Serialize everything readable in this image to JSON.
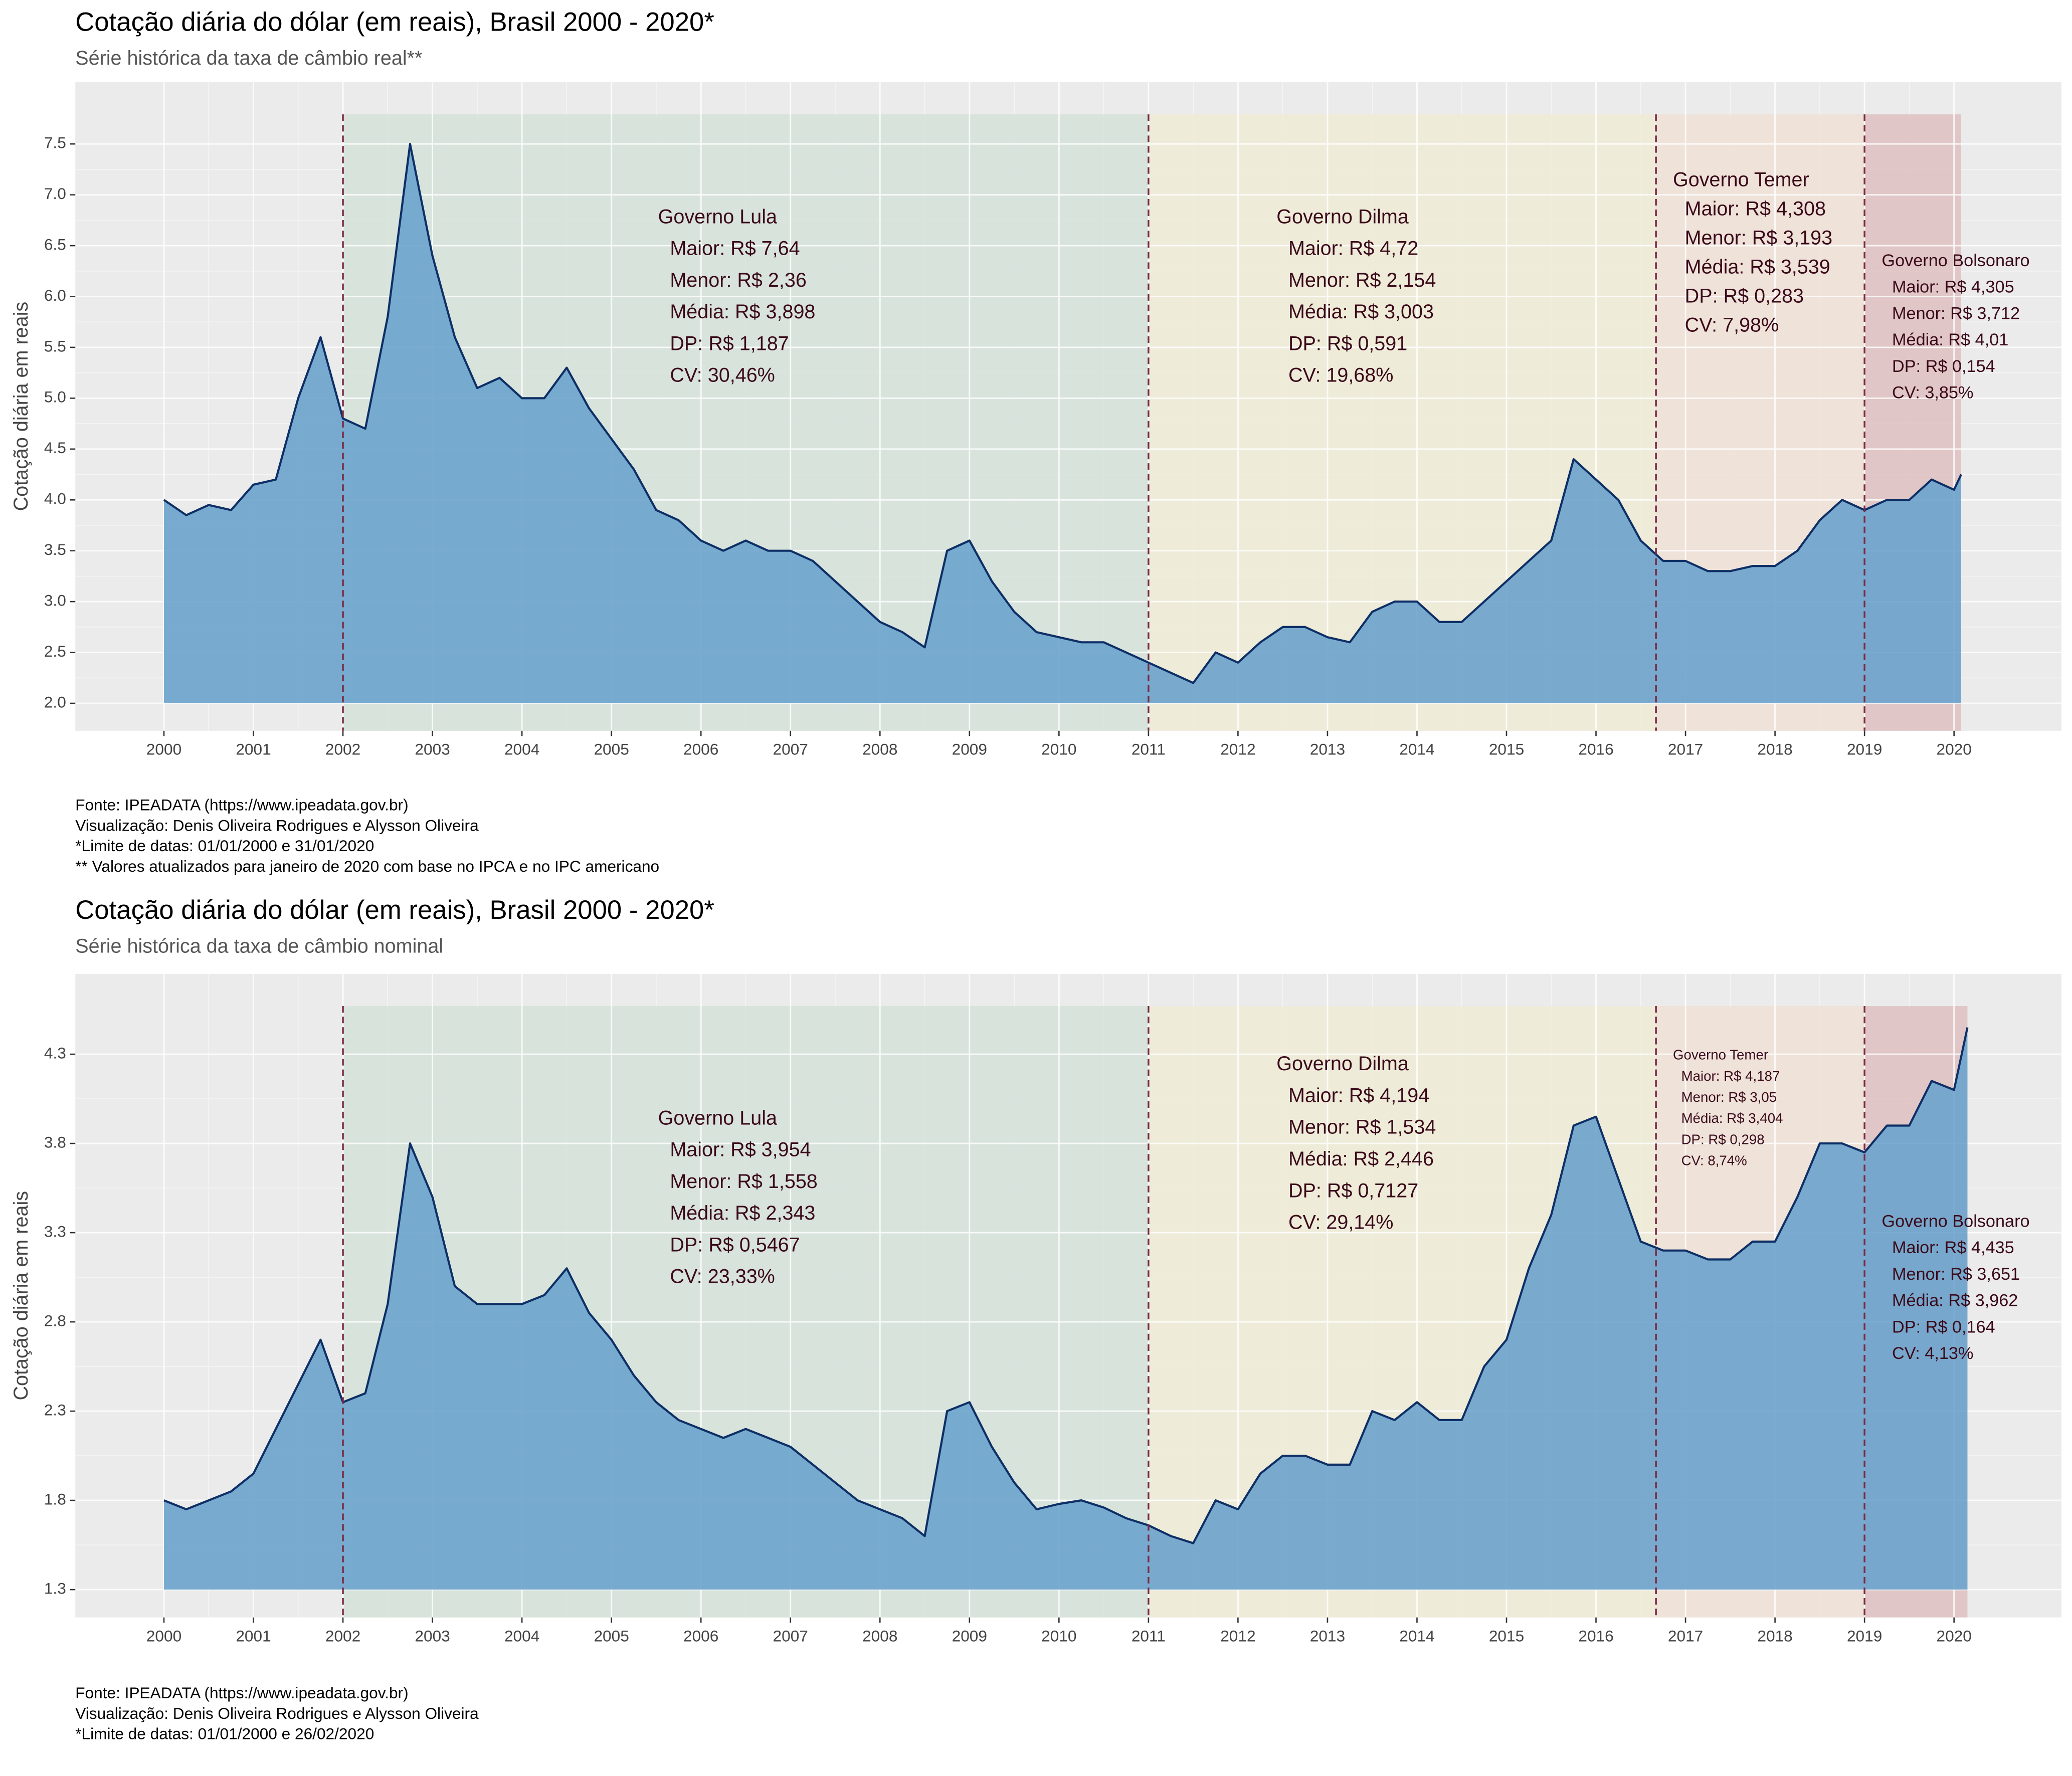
{
  "chart_data": [
    {
      "type": "area",
      "title": "Cotação diária do dólar (em reais), Brasil 2000 - 2020*",
      "subtitle": "Série histórica da taxa de câmbio real**",
      "y_label": "Cotação diária em reais",
      "x": [
        2000,
        2000.25,
        2000.5,
        2000.75,
        2001,
        2001.25,
        2001.5,
        2001.75,
        2002,
        2002.25,
        2002.5,
        2002.75,
        2003,
        2003.25,
        2003.5,
        2003.75,
        2004,
        2004.25,
        2004.5,
        2004.75,
        2005,
        2005.25,
        2005.5,
        2005.75,
        2006,
        2006.25,
        2006.5,
        2006.75,
        2007,
        2007.25,
        2007.5,
        2007.75,
        2008,
        2008.25,
        2008.5,
        2008.75,
        2009,
        2009.25,
        2009.5,
        2009.75,
        2010,
        2010.25,
        2010.5,
        2010.75,
        2011,
        2011.25,
        2011.5,
        2011.75,
        2012,
        2012.25,
        2012.5,
        2012.75,
        2013,
        2013.25,
        2013.5,
        2013.75,
        2014,
        2014.25,
        2014.5,
        2014.75,
        2015,
        2015.25,
        2015.5,
        2015.75,
        2016,
        2016.25,
        2016.5,
        2016.75,
        2017,
        2017.25,
        2017.5,
        2017.75,
        2018,
        2018.25,
        2018.5,
        2018.75,
        2019,
        2019.25,
        2019.5,
        2019.75,
        2020,
        2020.08
      ],
      "values": [
        4.0,
        3.85,
        3.95,
        3.9,
        4.15,
        4.2,
        5.0,
        5.6,
        4.8,
        4.7,
        5.8,
        7.5,
        6.4,
        5.6,
        5.1,
        5.2,
        5.0,
        5.0,
        5.3,
        4.9,
        4.6,
        4.3,
        3.9,
        3.8,
        3.6,
        3.5,
        3.6,
        3.5,
        3.5,
        3.4,
        3.2,
        3.0,
        2.8,
        2.7,
        2.55,
        3.5,
        3.6,
        3.2,
        2.9,
        2.7,
        2.65,
        2.6,
        2.6,
        2.5,
        2.4,
        2.3,
        2.2,
        2.5,
        2.4,
        2.6,
        2.75,
        2.75,
        2.65,
        2.6,
        2.9,
        3.0,
        3.0,
        2.8,
        2.8,
        3.0,
        3.2,
        3.4,
        3.6,
        4.4,
        4.2,
        4.0,
        3.6,
        3.4,
        3.4,
        3.3,
        3.3,
        3.35,
        3.35,
        3.5,
        3.8,
        4.0,
        3.9,
        4.0,
        4.0,
        4.2,
        4.1,
        4.25
      ],
      "fill_color": "#6ba3cc",
      "line_color": "#0e2f66",
      "xlim": [
        1999.01,
        2021.2
      ],
      "ylim": [
        1.73,
        8.11
      ],
      "xticks": [
        2000,
        2001,
        2002,
        2003,
        2004,
        2005,
        2006,
        2007,
        2008,
        2009,
        2010,
        2011,
        2012,
        2013,
        2014,
        2015,
        2016,
        2017,
        2018,
        2019,
        2020
      ],
      "yticks": [
        2.0,
        2.5,
        3.0,
        3.5,
        4.0,
        4.5,
        5.0,
        5.5,
        6.0,
        6.5,
        7.0,
        7.5
      ],
      "ytick_labels": [
        "2.0",
        "2.5",
        "3.0",
        "3.5",
        "4.0",
        "4.5",
        "5.0",
        "5.5",
        "6.0",
        "6.5",
        "7.0",
        "7.5"
      ],
      "periods": [
        {
          "start": 2002,
          "end": 2011,
          "color": "#d5e2d9"
        },
        {
          "start": 2011,
          "end": 2016.67,
          "color": "#eeebd6"
        },
        {
          "start": 2016.67,
          "end": 2019,
          "color": "#efe0d6"
        },
        {
          "start": 2019,
          "end": 2020.08,
          "color": "#dec0c0"
        }
      ],
      "annotations": [
        {
          "name": "Governo Lula",
          "lines": [
            "Maior: R$ 7,64",
            "Menor: R$ 2,36",
            "Média: R$ 3,898",
            "DP: R$ 1,187",
            "CV: 30,46%"
          ]
        },
        {
          "name": "Governo Dilma",
          "lines": [
            "Maior: R$ 4,72",
            "Menor: R$ 2,154",
            "Média: R$ 3,003",
            "DP: R$ 0,591",
            "CV: 19,68%"
          ]
        },
        {
          "name": "Governo Temer",
          "lines": [
            "Maior: R$ 4,308",
            "Menor: R$ 3,193",
            "Média: R$ 3,539",
            "DP: R$ 0,283",
            "CV: 7,98%"
          ]
        },
        {
          "name": "Governo Bolsonaro",
          "lines": [
            "Maior: R$  4,305",
            "Menor: R$ 3,712",
            "Média: R$ 4,01",
            "DP: R$ 0,154",
            "CV: 3,85%"
          ]
        }
      ],
      "caption": [
        "Fonte: IPEADATA (https://www.ipeadata.gov.br)",
        "Visualização: Denis Oliveira Rodrigues e Alysson Oliveira",
        "*Limite de datas: 01/01/2000 e 31/01/2020",
        "** Valores atualizados para janeiro de 2020 com base no IPCA e no IPC americano"
      ]
    },
    {
      "type": "area",
      "title": "Cotação diária do dólar (em reais), Brasil 2000 - 2020*",
      "subtitle": "Série histórica da taxa de câmbio nominal",
      "y_label": "Cotação diária em reais",
      "x": [
        2000,
        2000.25,
        2000.5,
        2000.75,
        2001,
        2001.25,
        2001.5,
        2001.75,
        2002,
        2002.25,
        2002.5,
        2002.75,
        2003,
        2003.25,
        2003.5,
        2003.75,
        2004,
        2004.25,
        2004.5,
        2004.75,
        2005,
        2005.25,
        2005.5,
        2005.75,
        2006,
        2006.25,
        2006.5,
        2006.75,
        2007,
        2007.25,
        2007.5,
        2007.75,
        2008,
        2008.25,
        2008.5,
        2008.75,
        2009,
        2009.25,
        2009.5,
        2009.75,
        2010,
        2010.25,
        2010.5,
        2010.75,
        2011,
        2011.25,
        2011.5,
        2011.75,
        2012,
        2012.25,
        2012.5,
        2012.75,
        2013,
        2013.25,
        2013.5,
        2013.75,
        2014,
        2014.25,
        2014.5,
        2014.75,
        2015,
        2015.25,
        2015.5,
        2015.75,
        2016,
        2016.25,
        2016.5,
        2016.75,
        2017,
        2017.25,
        2017.5,
        2017.75,
        2018,
        2018.25,
        2018.5,
        2018.75,
        2019,
        2019.25,
        2019.5,
        2019.75,
        2020,
        2020.15
      ],
      "values": [
        1.8,
        1.75,
        1.8,
        1.85,
        1.95,
        2.2,
        2.45,
        2.7,
        2.35,
        2.4,
        2.9,
        3.8,
        3.5,
        3.0,
        2.9,
        2.9,
        2.9,
        2.95,
        3.1,
        2.85,
        2.7,
        2.5,
        2.35,
        2.25,
        2.2,
        2.15,
        2.2,
        2.15,
        2.1,
        2.0,
        1.9,
        1.8,
        1.75,
        1.7,
        1.6,
        2.3,
        2.35,
        2.1,
        1.9,
        1.75,
        1.78,
        1.8,
        1.76,
        1.7,
        1.66,
        1.6,
        1.56,
        1.8,
        1.75,
        1.95,
        2.05,
        2.05,
        2.0,
        2.0,
        2.3,
        2.25,
        2.35,
        2.25,
        2.25,
        2.55,
        2.7,
        3.1,
        3.4,
        3.9,
        3.95,
        3.6,
        3.25,
        3.2,
        3.2,
        3.15,
        3.15,
        3.25,
        3.25,
        3.5,
        3.8,
        3.8,
        3.75,
        3.9,
        3.9,
        4.15,
        4.1,
        4.45
      ],
      "fill_color": "#6ba3cc",
      "line_color": "#0e2f66",
      "xlim": [
        1999.01,
        2021.2
      ],
      "ylim": [
        1.144,
        4.75
      ],
      "xticks": [
        2000,
        2001,
        2002,
        2003,
        2004,
        2005,
        2006,
        2007,
        2008,
        2009,
        2010,
        2011,
        2012,
        2013,
        2014,
        2015,
        2016,
        2017,
        2018,
        2019,
        2020
      ],
      "yticks": [
        1.3,
        1.8,
        2.3,
        2.8,
        3.3,
        3.8,
        4.3
      ],
      "periods": [
        {
          "start": 2002,
          "end": 2011,
          "color": "#d5e2d9"
        },
        {
          "start": 2011,
          "end": 2016.67,
          "color": "#eeebd6"
        },
        {
          "start": 2016.67,
          "end": 2019,
          "color": "#efe0d6"
        },
        {
          "start": 2019,
          "end": 2020.15,
          "color": "#dec0c0"
        }
      ],
      "annotations": [
        {
          "name": "Governo Lula",
          "lines": [
            "Maior: R$ 3,954",
            "Menor: R$ 1,558",
            "Média: R$ 2,343",
            "DP: R$ 0,5467",
            "CV: 23,33%"
          ]
        },
        {
          "name": "Governo Dilma",
          "lines": [
            "Maior: R$ 4,194",
            "Menor: R$ 1,534",
            "Média: R$ 2,446",
            "DP: R$ 0,7127",
            "CV: 29,14%"
          ]
        },
        {
          "name": "Governo Temer",
          "lines": [
            "Maior: R$ 4,187",
            "Menor: R$ 3,05",
            "Média: R$ 3,404",
            "DP: R$ 0,298",
            "CV: 8,74%"
          ]
        },
        {
          "name": "Governo Bolsonaro",
          "lines": [
            "Maior: R$  4,435",
            "Menor: R$ 3,651",
            "Média: R$ 3,962",
            "DP: R$ 0,164",
            "CV: 4,13%"
          ]
        }
      ],
      "caption": [
        "Fonte: IPEADATA (https://www.ipeadata.gov.br)",
        "Visualização: Denis Oliveira Rodrigues e Alysson Oliveira",
        "*Limite de datas: 01/01/2000 e 26/02/2020"
      ]
    }
  ]
}
